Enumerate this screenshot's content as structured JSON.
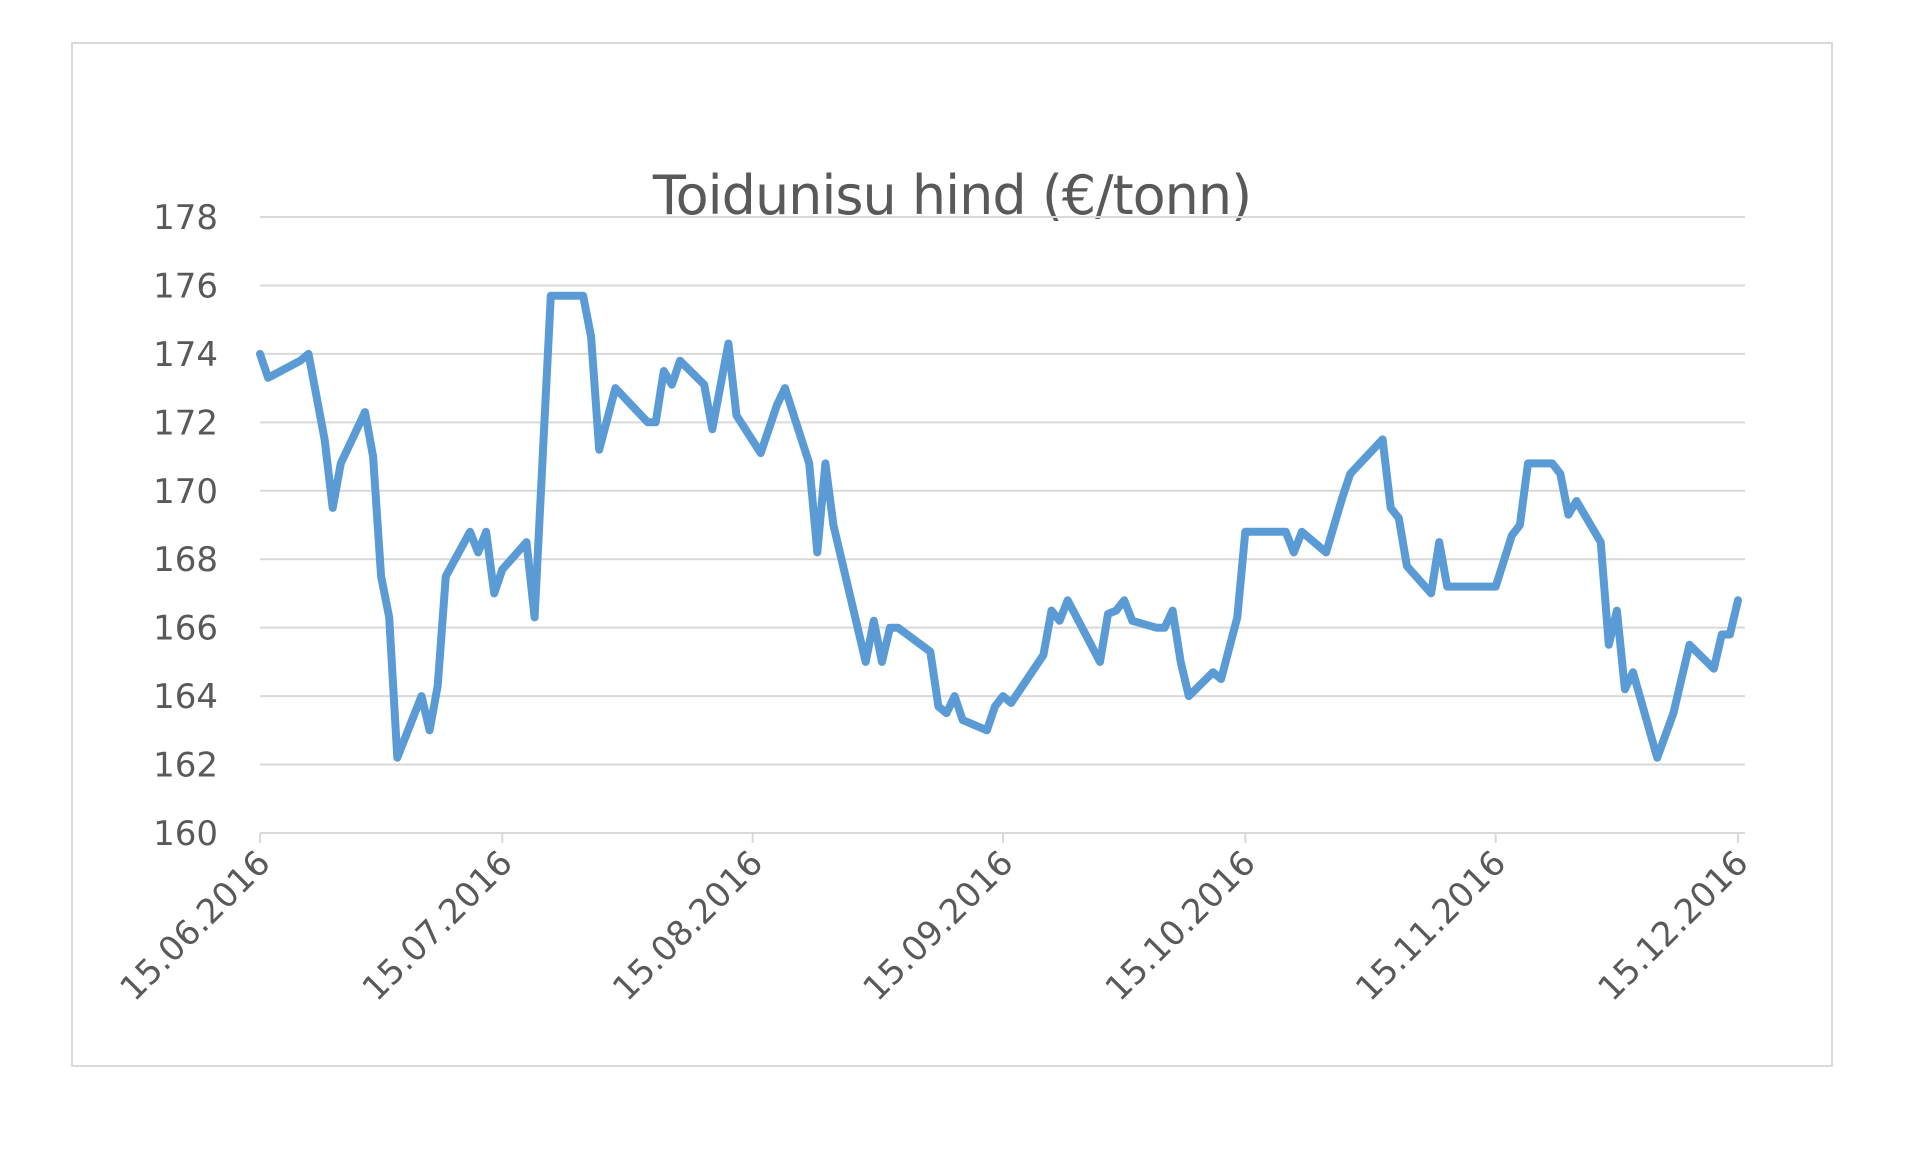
{
  "chart": {
    "title": "Toidunisu hind (€/tonn)",
    "line_color": "#5b9bd5",
    "grid_color": "#d9d9d9",
    "text_color": "#595959"
  },
  "chart_data": {
    "type": "line",
    "title": "Toidunisu hind (€/tonn)",
    "xlabel": "",
    "ylabel": "",
    "ylim": [
      160,
      178
    ],
    "yticks": [
      160,
      162,
      164,
      166,
      168,
      170,
      172,
      174,
      176,
      178
    ],
    "xticks": [
      "15.06.2016",
      "15.07.2016",
      "15.08.2016",
      "15.09.2016",
      "15.10.2016",
      "15.11.2016",
      "15.12.2016"
    ],
    "grid": true,
    "legend": "none",
    "series": [
      {
        "name": "Toidunisu hind",
        "points": [
          [
            "15.06.2016",
            174.0
          ],
          [
            "16.06.2016",
            173.3
          ],
          [
            "20.06.2016",
            173.8
          ],
          [
            "21.06.2016",
            174.0
          ],
          [
            "23.06.2016",
            171.5
          ],
          [
            "24.06.2016",
            169.5
          ],
          [
            "25.06.2016",
            170.8
          ],
          [
            "28.06.2016",
            172.3
          ],
          [
            "29.06.2016",
            171.0
          ],
          [
            "30.06.2016",
            167.5
          ],
          [
            "01.07.2016",
            166.3
          ],
          [
            "02.07.2016",
            162.2
          ],
          [
            "05.07.2016",
            164.0
          ],
          [
            "06.07.2016",
            163.0
          ],
          [
            "07.07.2016",
            164.3
          ],
          [
            "08.07.2016",
            167.5
          ],
          [
            "11.07.2016",
            168.8
          ],
          [
            "12.07.2016",
            168.2
          ],
          [
            "13.07.2016",
            168.8
          ],
          [
            "14.07.2016",
            167.0
          ],
          [
            "15.07.2016",
            167.7
          ],
          [
            "18.07.2016",
            168.5
          ],
          [
            "19.07.2016",
            166.3
          ],
          [
            "21.07.2016",
            175.7
          ],
          [
            "25.07.2016",
            175.7
          ],
          [
            "26.07.2016",
            174.5
          ],
          [
            "27.07.2016",
            171.2
          ],
          [
            "29.07.2016",
            173.0
          ],
          [
            "02.08.2016",
            172.0
          ],
          [
            "03.08.2016",
            172.0
          ],
          [
            "04.08.2016",
            173.5
          ],
          [
            "05.08.2016",
            173.1
          ],
          [
            "06.08.2016",
            173.8
          ],
          [
            "09.08.2016",
            173.1
          ],
          [
            "10.08.2016",
            171.8
          ],
          [
            "12.08.2016",
            174.3
          ],
          [
            "13.08.2016",
            172.2
          ],
          [
            "16.08.2016",
            171.1
          ],
          [
            "18.08.2016",
            172.5
          ],
          [
            "19.08.2016",
            173.0
          ],
          [
            "22.08.2016",
            170.8
          ],
          [
            "23.08.2016",
            168.2
          ],
          [
            "24.08.2016",
            170.8
          ],
          [
            "25.08.2016",
            169.0
          ],
          [
            "29.08.2016",
            165.0
          ],
          [
            "30.08.2016",
            166.2
          ],
          [
            "31.08.2016",
            165.0
          ],
          [
            "01.09.2016",
            166.0
          ],
          [
            "02.09.2016",
            166.0
          ],
          [
            "06.09.2016",
            165.3
          ],
          [
            "07.09.2016",
            163.7
          ],
          [
            "08.09.2016",
            163.5
          ],
          [
            "09.09.2016",
            164.0
          ],
          [
            "10.09.2016",
            163.3
          ],
          [
            "13.09.2016",
            163.0
          ],
          [
            "14.09.2016",
            163.7
          ],
          [
            "15.09.2016",
            164.0
          ],
          [
            "16.09.2016",
            163.8
          ],
          [
            "20.09.2016",
            165.2
          ],
          [
            "21.09.2016",
            166.5
          ],
          [
            "22.09.2016",
            166.2
          ],
          [
            "23.09.2016",
            166.8
          ],
          [
            "27.09.2016",
            165.0
          ],
          [
            "28.09.2016",
            166.4
          ],
          [
            "29.09.2016",
            166.5
          ],
          [
            "30.09.2016",
            166.8
          ],
          [
            "01.10.2016",
            166.2
          ],
          [
            "04.10.2016",
            166.0
          ],
          [
            "05.10.2016",
            166.0
          ],
          [
            "06.10.2016",
            166.5
          ],
          [
            "07.10.2016",
            165.0
          ],
          [
            "08.10.2016",
            164.0
          ],
          [
            "11.10.2016",
            164.7
          ],
          [
            "12.10.2016",
            164.5
          ],
          [
            "14.10.2016",
            166.3
          ],
          [
            "15.10.2016",
            168.8
          ],
          [
            "19.10.2016",
            168.8
          ],
          [
            "20.10.2016",
            168.8
          ],
          [
            "21.10.2016",
            168.2
          ],
          [
            "22.10.2016",
            168.8
          ],
          [
            "25.10.2016",
            168.2
          ],
          [
            "27.10.2016",
            169.8
          ],
          [
            "28.10.2016",
            170.5
          ],
          [
            "01.11.2016",
            171.5
          ],
          [
            "02.11.2016",
            169.5
          ],
          [
            "03.11.2016",
            169.2
          ],
          [
            "04.11.2016",
            167.8
          ],
          [
            "07.11.2016",
            167.0
          ],
          [
            "08.11.2016",
            168.5
          ],
          [
            "09.11.2016",
            167.2
          ],
          [
            "14.11.2016",
            167.2
          ],
          [
            "15.11.2016",
            167.2
          ],
          [
            "17.11.2016",
            168.7
          ],
          [
            "18.11.2016",
            169.0
          ],
          [
            "19.11.2016",
            170.8
          ],
          [
            "22.11.2016",
            170.8
          ],
          [
            "23.11.2016",
            170.5
          ],
          [
            "24.11.2016",
            169.3
          ],
          [
            "25.11.2016",
            169.7
          ],
          [
            "28.11.2016",
            168.5
          ],
          [
            "29.11.2016",
            165.5
          ],
          [
            "30.11.2016",
            166.5
          ],
          [
            "01.12.2016",
            164.2
          ],
          [
            "02.12.2016",
            164.7
          ],
          [
            "05.12.2016",
            162.2
          ],
          [
            "07.12.2016",
            163.5
          ],
          [
            "09.12.2016",
            165.5
          ],
          [
            "12.12.2016",
            164.8
          ],
          [
            "13.12.2016",
            165.8
          ],
          [
            "14.12.2016",
            165.8
          ],
          [
            "15.12.2016",
            166.8
          ]
        ]
      }
    ]
  }
}
